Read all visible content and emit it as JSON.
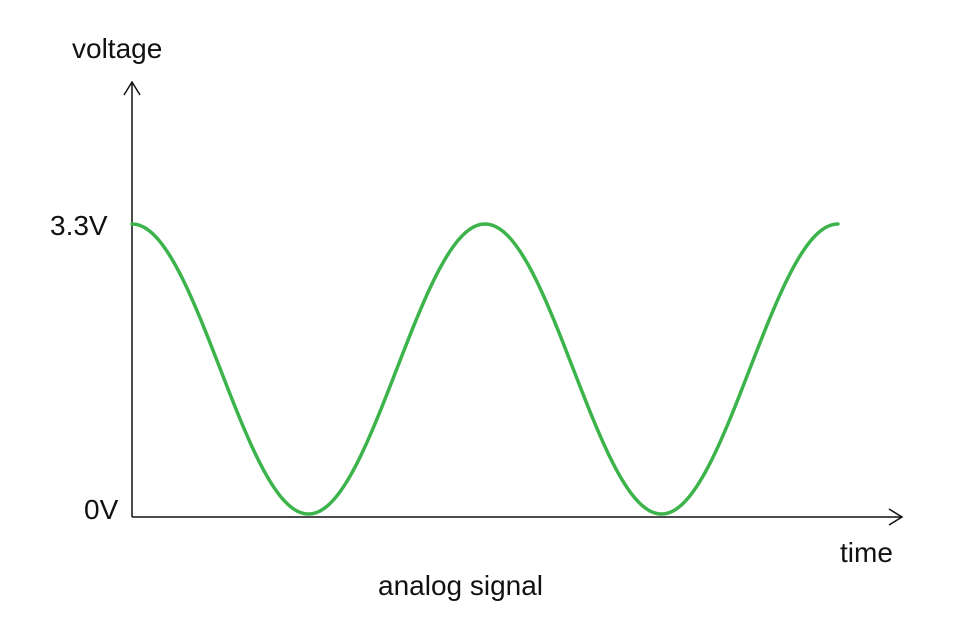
{
  "chart_data": {
    "type": "line",
    "caption": "analog signal",
    "xlabel": "time",
    "ylabel": "voltage",
    "y_ticks": [
      "3.3V",
      "0V"
    ],
    "ylim": [
      0,
      3.3
    ],
    "cycles": 2,
    "series": [
      {
        "color": "#3cb44b",
        "x": [
          0,
          0.25,
          0.5,
          0.75,
          1.0,
          1.25,
          1.5,
          1.75,
          2.0
        ],
        "y": [
          3.3,
          1.65,
          0,
          1.65,
          3.3,
          1.65,
          0,
          1.65,
          3.3
        ]
      }
    ],
    "grid": false
  }
}
